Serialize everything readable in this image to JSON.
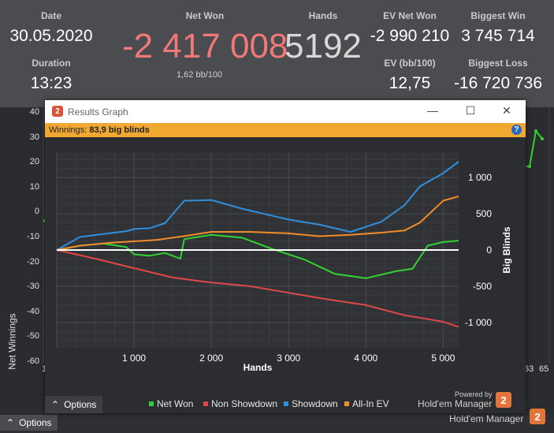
{
  "stats": {
    "date": {
      "label": "Date",
      "value": "30.05.2020"
    },
    "duration": {
      "label": "Duration",
      "value": "13:23"
    },
    "net_won": {
      "label": "Net Won",
      "value": "-2 417 008",
      "sub": "1,62 bb/100"
    },
    "hands": {
      "label": "Hands",
      "value": "5192"
    },
    "ev_net_won": {
      "label": "EV Net Won",
      "value": "-2 990 210"
    },
    "ev_bb100": {
      "label": "EV (bb/100)",
      "value": "12,75"
    },
    "biggest_win": {
      "label": "Biggest Win",
      "value": "3 745 714"
    },
    "biggest_loss": {
      "label": "Biggest Loss",
      "value": "-16 720 736"
    }
  },
  "background_chart": {
    "ylabel": "Net Winnings",
    "yticks": [
      "40",
      "30",
      "20",
      "10",
      "0",
      "-10",
      "-20",
      "-30",
      "-40",
      "-50",
      "-60"
    ],
    "xticks_right": [
      "63",
      "65"
    ],
    "xtick_left": "1"
  },
  "window": {
    "title": "Results Graph",
    "icon": "2",
    "controls": {
      "minimize": "—",
      "maximize": "☐",
      "close": "✕"
    },
    "info_label": "Winnings:",
    "info_value": "83,9 big blinds",
    "help": "?",
    "options_label": "Options",
    "powered_by": "Powered by",
    "brand": "Hold'em Manager",
    "brand_num": "2"
  },
  "chart_data": {
    "type": "line",
    "xlabel": "Hands",
    "ylabel": "Big Blinds",
    "xlim": [
      0,
      5200
    ],
    "ylim": [
      -1350,
      1350
    ],
    "xticks": [
      "1 000",
      "2 000",
      "3 000",
      "4 000",
      "5 000"
    ],
    "yticks": [
      "1 000",
      "500",
      "0",
      "-500",
      "-1 000"
    ],
    "series": [
      {
        "name": "Net Won",
        "color": "#32d232",
        "x": [
          0,
          300,
          600,
          900,
          1000,
          1200,
          1400,
          1600,
          1650,
          2000,
          2400,
          2800,
          3200,
          3600,
          4000,
          4400,
          4600,
          4800,
          5000,
          5200
        ],
        "y": [
          0,
          60,
          90,
          40,
          -60,
          -80,
          -40,
          -120,
          150,
          210,
          170,
          10,
          -130,
          -330,
          -390,
          -290,
          -260,
          60,
          110,
          130
        ]
      },
      {
        "name": "Non Showdown",
        "color": "#e04848",
        "x": [
          0,
          500,
          1000,
          1500,
          2000,
          2500,
          3000,
          3500,
          4000,
          4500,
          5000,
          5200
        ],
        "y": [
          0,
          -120,
          -250,
          -380,
          -450,
          -500,
          -590,
          -680,
          -760,
          -900,
          -990,
          -1060
        ]
      },
      {
        "name": "Showdown",
        "color": "#2f8fdc",
        "x": [
          0,
          300,
          600,
          900,
          1000,
          1200,
          1400,
          1650,
          2000,
          2400,
          2800,
          3000,
          3400,
          3800,
          4200,
          4500,
          4700,
          4900,
          5000,
          5200
        ],
        "y": [
          0,
          180,
          220,
          260,
          290,
          300,
          370,
          680,
          690,
          570,
          470,
          420,
          350,
          250,
          390,
          620,
          880,
          1000,
          1060,
          1220
        ]
      },
      {
        "name": "All-In EV",
        "color": "#f08c2a",
        "x": [
          0,
          300,
          700,
          1000,
          1300,
          1700,
          2000,
          2500,
          3000,
          3400,
          3800,
          4200,
          4500,
          4700,
          4900,
          5000,
          5200
        ],
        "y": [
          0,
          60,
          100,
          120,
          140,
          200,
          250,
          250,
          230,
          190,
          210,
          240,
          270,
          380,
          580,
          680,
          740
        ]
      }
    ]
  }
}
